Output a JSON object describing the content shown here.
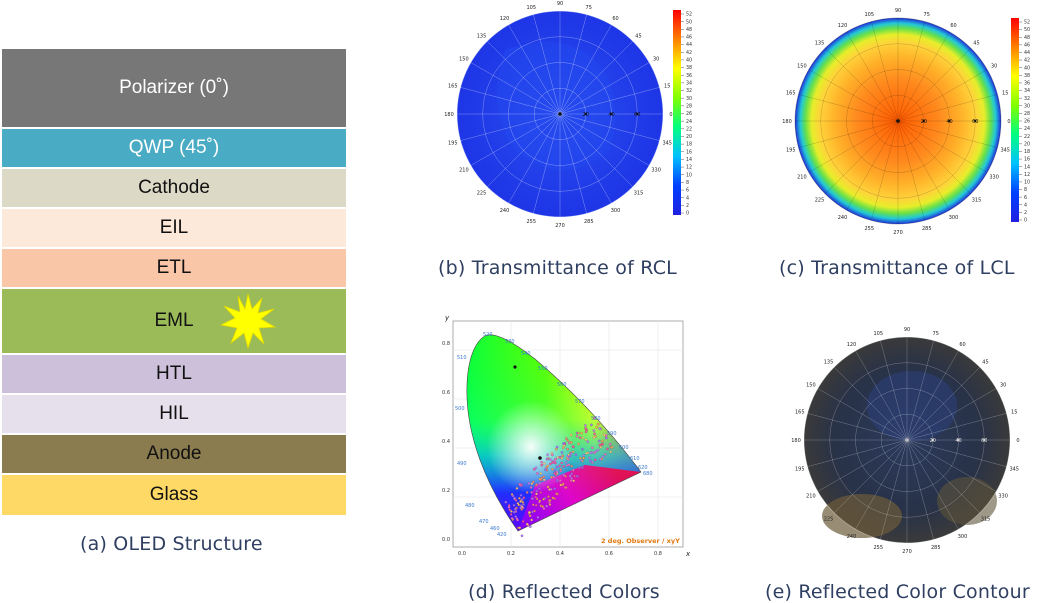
{
  "structure": {
    "caption": "(a) OLED Structure",
    "layers": [
      {
        "label": "Polarizer (0˚)",
        "color": "#777777",
        "text_color": "#ffffff"
      },
      {
        "label": "QWP (45˚)",
        "color": "#4aabc4",
        "text_color": "#ffffff"
      },
      {
        "label": "Cathode",
        "color": "#dcd9c6",
        "text_color": "#111111"
      },
      {
        "label": "EIL",
        "color": "#fde9da",
        "text_color": "#111111"
      },
      {
        "label": "ETL",
        "color": "#f9c6a8",
        "text_color": "#111111"
      },
      {
        "label": "EML",
        "color": "#9bbb59",
        "text_color": "#111111"
      },
      {
        "label": "HTL",
        "color": "#ccc0da",
        "text_color": "#111111"
      },
      {
        "label": "HIL",
        "color": "#e6e0ec",
        "text_color": "#111111"
      },
      {
        "label": "Anode",
        "color": "#8a7c4e",
        "text_color": "#111111"
      },
      {
        "label": "Glass",
        "color": "#ffd966",
        "text_color": "#111111"
      }
    ],
    "emission_color": "#ffff00"
  },
  "angles": [
    "90",
    "75",
    "60",
    "45",
    "30",
    "15",
    "0",
    "345",
    "330",
    "315",
    "300",
    "285",
    "270",
    "255",
    "240",
    "225",
    "210",
    "195",
    "180",
    "165",
    "150",
    "135",
    "120",
    "105"
  ],
  "radial_ticks": [
    "20",
    "40",
    "60"
  ],
  "colorbar_ticks": [
    "52",
    "50",
    "48",
    "46",
    "44",
    "42",
    "40",
    "38",
    "36",
    "34",
    "32",
    "30",
    "28",
    "26",
    "24",
    "22",
    "20",
    "18",
    "16",
    "14",
    "12",
    "10",
    "8",
    "6",
    "4",
    "2",
    "0"
  ],
  "panels": {
    "rcl": {
      "caption": "(b) Transmittance of RCL"
    },
    "lcl": {
      "caption": "(c) Transmittance of LCL"
    },
    "colors": {
      "caption": "(d) Reflected Colors",
      "observer_note": "2 deg. Observer / xyY",
      "x_axis_label": "x",
      "y_axis_label": "y",
      "x_ticks": [
        "0.0",
        "0.2",
        "0.4",
        "0.6",
        "0.8"
      ],
      "y_ticks": [
        "0.0",
        "0.2",
        "0.4",
        "0.6",
        "0.8"
      ],
      "wavelength_labels": [
        "520",
        "530",
        "540",
        "550",
        "510",
        "560",
        "570",
        "500",
        "580",
        "590",
        "600",
        "610",
        "620",
        "490",
        "680",
        "480",
        "470",
        "460",
        "420"
      ]
    },
    "contour": {
      "caption": "(e) Reflected Color Contour"
    }
  }
}
